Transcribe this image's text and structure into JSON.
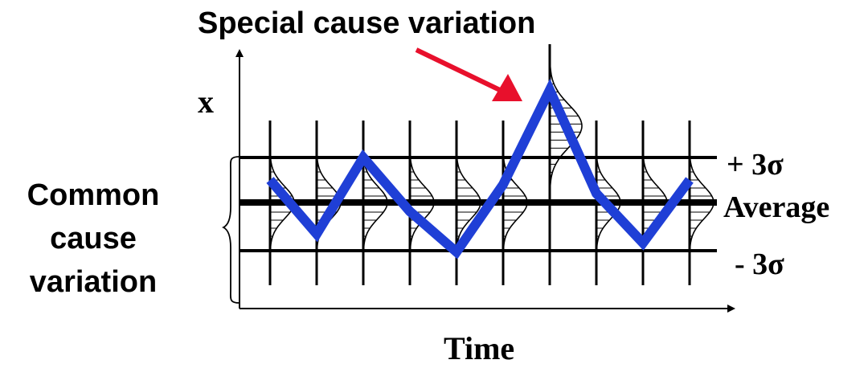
{
  "labels": {
    "title": "Special cause variation",
    "y_axis": "x",
    "x_axis": "Time",
    "common_cause_line1": "Common",
    "common_cause_line2": "cause",
    "common_cause_line3": "variation",
    "upper_limit": "+ 3σ",
    "average": "Average",
    "lower_limit": "- 3σ"
  },
  "colors": {
    "series": "#1f3fd6",
    "arrow": "#e8102c",
    "ink": "#000000"
  },
  "chart_data": {
    "type": "line",
    "x": [
      1,
      2,
      3,
      4,
      5,
      6,
      7,
      8,
      9,
      10
    ],
    "values": [
      0.5,
      -0.7,
      1.0,
      -0.2,
      -1.1,
      0.4,
      2.5,
      0.2,
      -0.9,
      0.5
    ],
    "control_limits": {
      "upper": 1,
      "center": 0,
      "lower": -1
    },
    "special_cause_index": 6,
    "xlabel": "Time",
    "ylabel": "x"
  }
}
